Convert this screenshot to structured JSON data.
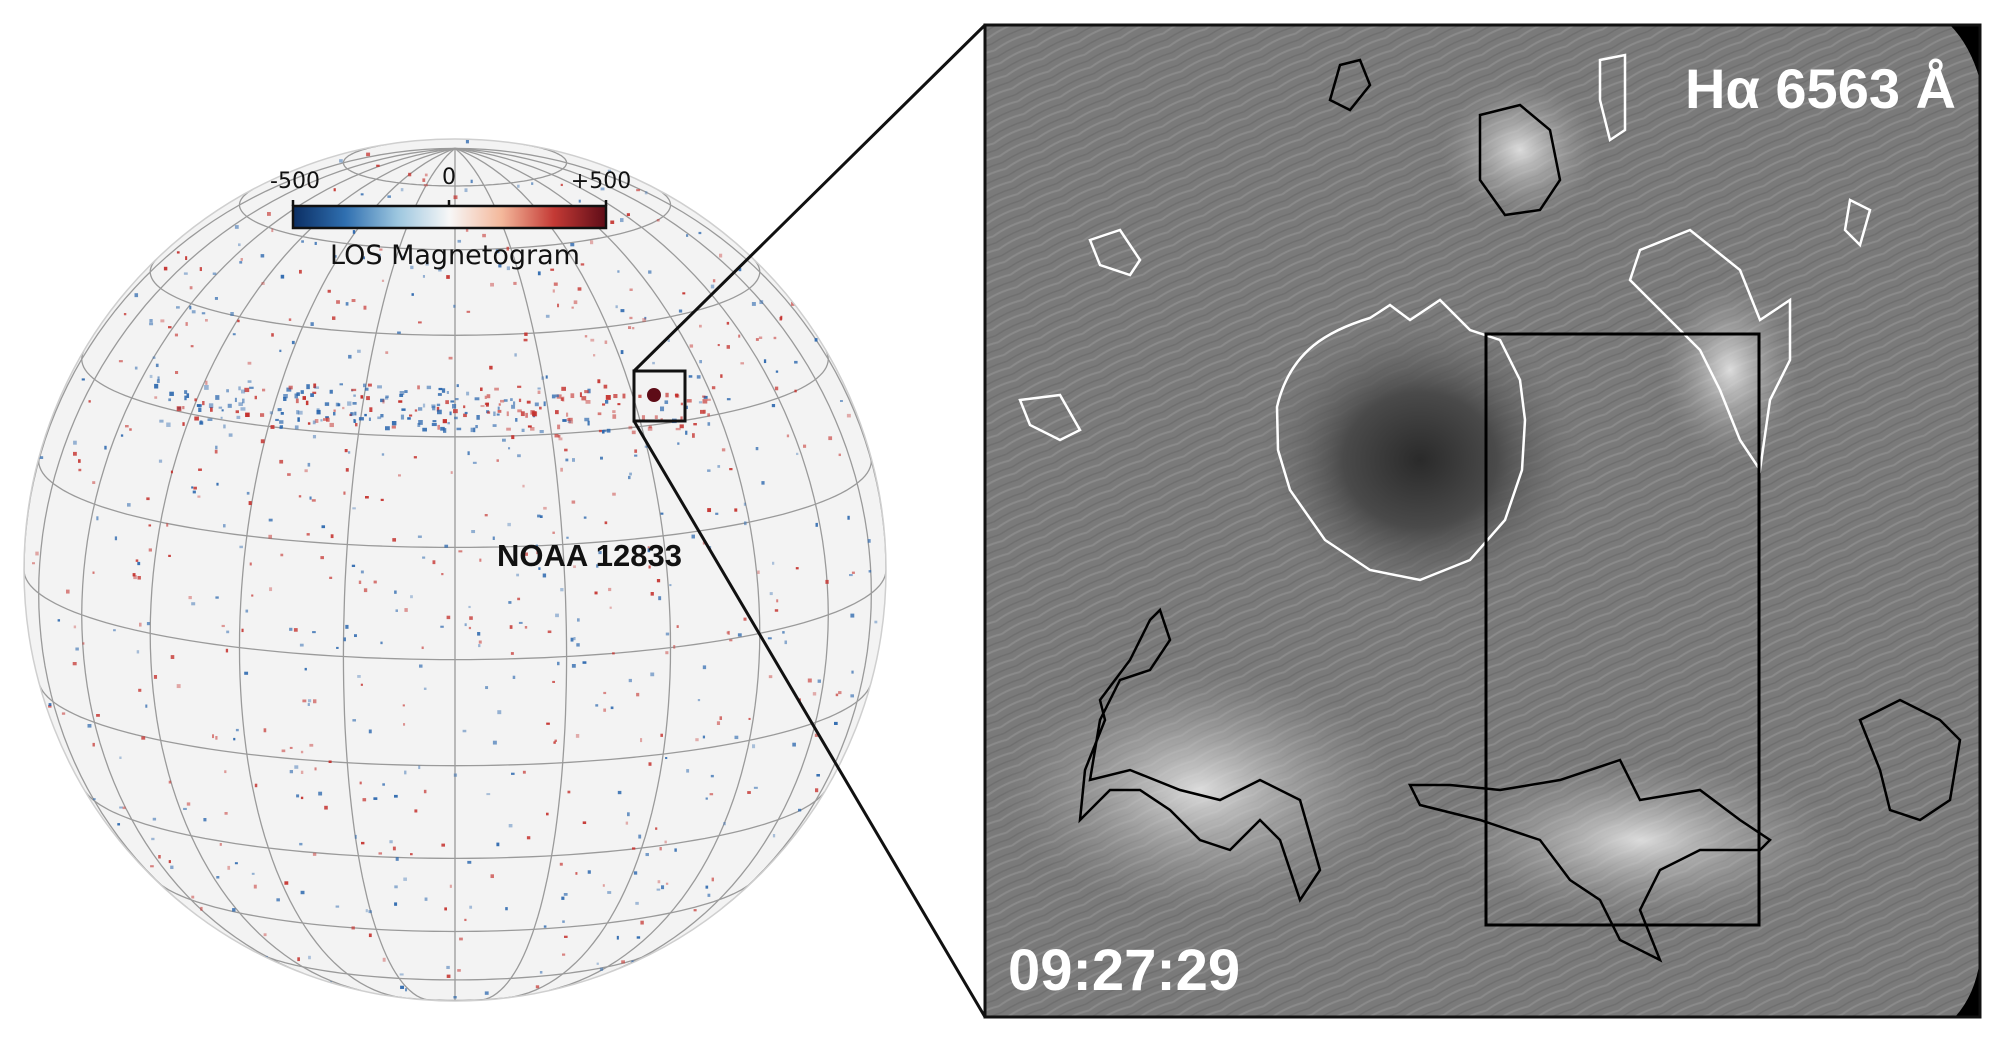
{
  "left_panel": {
    "colorbar": {
      "tick_labels": [
        "-500",
        "0",
        "+500"
      ],
      "title": "LOS Magnetogram",
      "colors": [
        "#0b2e63",
        "#2f6fb0",
        "#9cc6df",
        "#f7f7f7",
        "#f4b89b",
        "#c43a35",
        "#5e0c17"
      ]
    },
    "region_label": "NOAA 12833",
    "grid_color": "#9a9a9a",
    "disk_color": "#f3f3f3",
    "positive_color": "#c4312d",
    "negative_color": "#2a66ad"
  },
  "right_panel": {
    "title": "Hα 6563 Å",
    "timestamp": "09:27:29",
    "background": "#7a7a7a",
    "positive_contour_color": "#ffffff",
    "negative_contour_color": "#000000"
  }
}
